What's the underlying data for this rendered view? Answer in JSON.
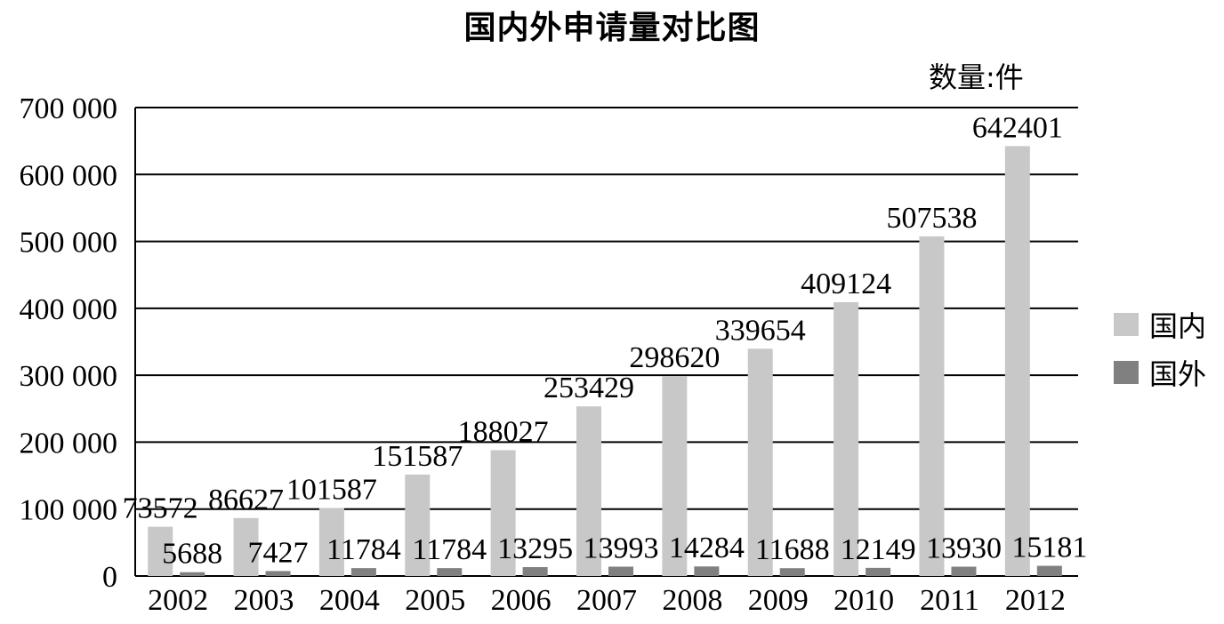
{
  "chart_data": {
    "type": "bar",
    "title": "国内外申请量对比图",
    "unit_label": "数量:件",
    "categories": [
      "2002",
      "2003",
      "2004",
      "2005",
      "2006",
      "2007",
      "2008",
      "2009",
      "2010",
      "2011",
      "2012"
    ],
    "series": [
      {
        "name": "国内",
        "color": "#c8c8c8",
        "values": [
          73572,
          86627,
          101587,
          151587,
          188027,
          253429,
          298620,
          339654,
          409124,
          507538,
          642401
        ],
        "labels": [
          "73572",
          "86627",
          "101587",
          "151587",
          "188027",
          "253429",
          "298620",
          "339654",
          "409124",
          "507538",
          "642401"
        ]
      },
      {
        "name": "国外",
        "color": "#808080",
        "values": [
          5688,
          7427,
          11784,
          11784,
          13295,
          13993,
          14284,
          11688,
          12149,
          13930,
          15181
        ],
        "labels": [
          "5688",
          "7427",
          "11784",
          "11784",
          "13295",
          "13993",
          "14284",
          "11688",
          "12149",
          "13930",
          "15181"
        ]
      }
    ],
    "ylim": [
      0,
      700000
    ],
    "yticks": [
      0,
      100000,
      200000,
      300000,
      400000,
      500000,
      600000,
      700000
    ],
    "ytick_labels": [
      "0",
      "100 000",
      "200 000",
      "300 000",
      "400 000",
      "500 000",
      "600 000",
      "700 000"
    ],
    "grid": true,
    "legend_position": "right"
  }
}
